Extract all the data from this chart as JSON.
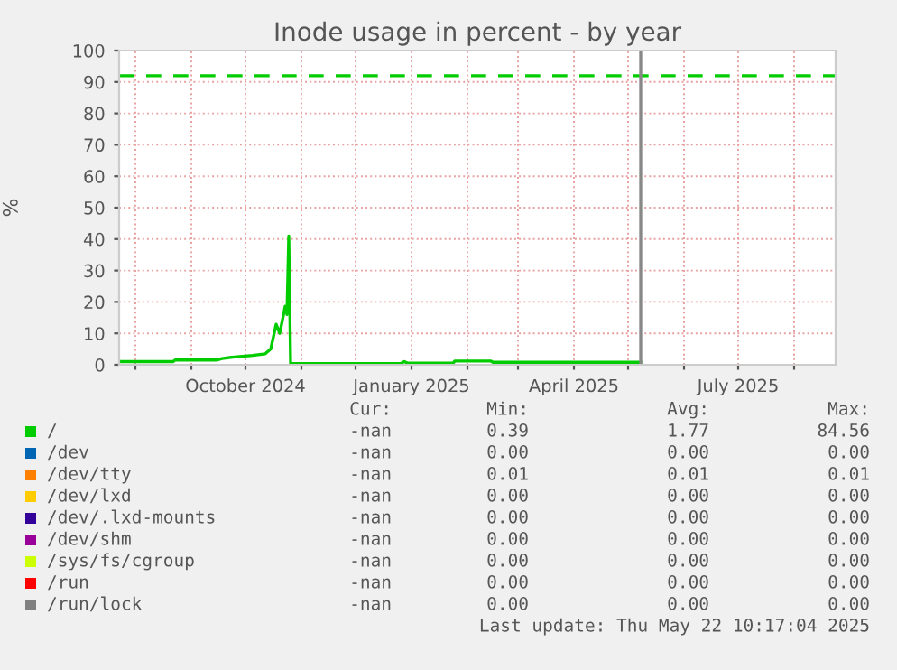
{
  "chart_data": {
    "type": "line",
    "title": "Inode usage in percent - by year",
    "ylabel": "%",
    "xlim": [
      "2024-07-23",
      "2025-08-24"
    ],
    "ylim": [
      0,
      100
    ],
    "yticks": [
      0,
      10,
      20,
      30,
      40,
      50,
      60,
      70,
      80,
      90,
      100
    ],
    "xticks": [
      {
        "value": "2024-08-01",
        "label": null
      },
      {
        "value": "2024-09-01",
        "label": null
      },
      {
        "value": "2024-10-01",
        "label": "October 2024"
      },
      {
        "value": "2024-11-01",
        "label": null
      },
      {
        "value": "2024-12-01",
        "label": null
      },
      {
        "value": "2025-01-01",
        "label": "January 2025"
      },
      {
        "value": "2025-02-01",
        "label": null
      },
      {
        "value": "2025-03-01",
        "label": null
      },
      {
        "value": "2025-04-01",
        "label": "April 2025"
      },
      {
        "value": "2025-05-01",
        "label": null
      },
      {
        "value": "2025-06-01",
        "label": null
      },
      {
        "value": "2025-07-01",
        "label": "July 2025"
      },
      {
        "value": "2025-08-01",
        "label": null
      }
    ],
    "grid": true,
    "legend": "bottom",
    "line_style": "solid",
    "x": [
      "2024-07-23",
      "2024-08-22",
      "2024-08-23",
      "2024-09-15",
      "2024-09-18",
      "2024-09-25",
      "2024-10-05",
      "2024-10-12",
      "2024-10-15",
      "2024-10-18",
      "2024-10-20",
      "2024-10-23",
      "2024-10-24",
      "2024-10-25",
      "2024-10-26",
      "2024-12-26",
      "2024-12-28",
      "2024-12-30",
      "2025-01-24",
      "2025-01-25",
      "2025-02-14",
      "2025-02-15",
      "2025-05-08"
    ],
    "series": [
      {
        "name": "/",
        "color": "#00cc00",
        "values": [
          1,
          1,
          1.5,
          1.5,
          2,
          2.5,
          3,
          3.5,
          5,
          12.9,
          10,
          18.6,
          16,
          41,
          0.4,
          0.4,
          1,
          0.5,
          0.5,
          1.2,
          1.2,
          0.8,
          0.8
        ]
      },
      {
        "name": "/dev",
        "color": "#0066b3",
        "values": [
          null,
          null,
          null,
          null,
          null,
          null,
          null,
          null,
          null,
          null,
          null,
          null,
          null,
          null,
          null,
          null,
          null,
          null,
          null,
          null,
          null,
          null,
          null
        ]
      },
      {
        "name": "/dev/tty",
        "color": "#ff8000",
        "values": [
          null,
          null,
          null,
          null,
          null,
          null,
          null,
          null,
          null,
          null,
          null,
          null,
          null,
          null,
          null,
          null,
          null,
          null,
          null,
          null,
          null,
          null,
          null
        ]
      },
      {
        "name": "/dev/lxd",
        "color": "#ffcc00",
        "values": [
          null,
          null,
          null,
          null,
          null,
          null,
          null,
          null,
          null,
          null,
          null,
          null,
          null,
          null,
          null,
          null,
          null,
          null,
          null,
          null,
          null,
          null,
          null
        ]
      },
      {
        "name": "/dev/.lxd-mounts",
        "color": "#330099",
        "values": [
          null,
          null,
          null,
          null,
          null,
          null,
          null,
          null,
          null,
          null,
          null,
          null,
          null,
          null,
          null,
          null,
          null,
          null,
          null,
          null,
          null,
          null,
          null
        ]
      },
      {
        "name": "/dev/shm",
        "color": "#990099",
        "values": [
          null,
          null,
          null,
          null,
          null,
          null,
          null,
          null,
          null,
          null,
          null,
          null,
          null,
          null,
          null,
          null,
          null,
          null,
          null,
          null,
          null,
          null,
          null
        ]
      },
      {
        "name": "/sys/fs/cgroup",
        "color": "#ccff00",
        "values": [
          null,
          null,
          null,
          null,
          null,
          null,
          null,
          null,
          null,
          null,
          null,
          null,
          null,
          null,
          null,
          null,
          null,
          null,
          null,
          null,
          null,
          null,
          null
        ]
      },
      {
        "name": "/run",
        "color": "#ff0000",
        "values": [
          null,
          null,
          null,
          null,
          null,
          null,
          null,
          null,
          null,
          null,
          null,
          null,
          null,
          null,
          null,
          null,
          null,
          null,
          null,
          null,
          null,
          null,
          null
        ]
      },
      {
        "name": "/run/lock",
        "color": "#808080",
        "values": [
          null,
          null,
          null,
          null,
          null,
          null,
          null,
          null,
          null,
          null,
          null,
          null,
          null,
          null,
          null,
          null,
          null,
          null,
          null,
          null,
          null,
          null,
          null
        ]
      }
    ],
    "ref_lines": [
      {
        "axis": "y",
        "value": 92,
        "color": "#00cc00",
        "line_style": "dashed"
      },
      {
        "axis": "x",
        "value": "2025-05-08",
        "color": "#888888",
        "line_style": "solid"
      }
    ],
    "annotations": [
      "Cur:",
      "Min:",
      "Avg:",
      "Max:",
      "-nan",
      "0.39",
      "1.77",
      "84.56",
      "-nan",
      "0.00",
      "0.00",
      "0.00",
      "-nan",
      "0.01",
      "0.01",
      "0.01",
      "-nan",
      "0.00",
      "0.00",
      "0.00",
      "-nan",
      "0.00",
      "0.00",
      "0.00",
      "-nan",
      "0.00",
      "0.00",
      "0.00",
      "-nan",
      "0.00",
      "0.00",
      "0.00",
      "-nan",
      "0.00",
      "0.00",
      "0.00",
      "-nan",
      "0.00",
      "0.00",
      "0.00",
      "Last update: Thu May 22 10:17:04 2025"
    ]
  }
}
